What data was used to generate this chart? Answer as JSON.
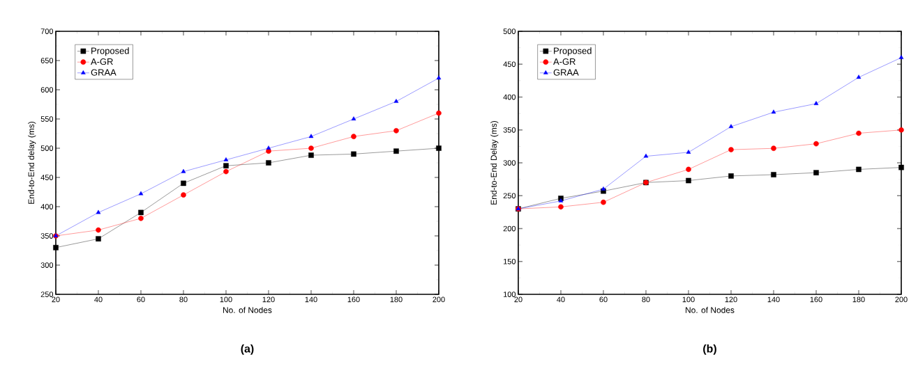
{
  "chart_data": [
    {
      "type": "line",
      "xlabel": "No. of Nodes",
      "ylabel": "End-to-End delay (ms)",
      "annotations": [
        "(a)"
      ],
      "x": [
        20,
        40,
        60,
        80,
        100,
        120,
        140,
        160,
        180,
        200
      ],
      "xlim": [
        20,
        200
      ],
      "xticks": [
        20,
        40,
        60,
        80,
        100,
        120,
        140,
        160,
        180,
        200
      ],
      "ylim": [
        250,
        700
      ],
      "yticks": [
        250,
        300,
        350,
        400,
        450,
        500,
        550,
        600,
        650,
        700
      ],
      "legend": "top left",
      "grid": false,
      "series": [
        {
          "name": "Proposed",
          "color": "#000000",
          "marker": "square",
          "values": [
            330,
            345,
            390,
            440,
            470,
            475,
            488,
            490,
            495,
            500
          ]
        },
        {
          "name": "A-GR",
          "color": "#ff0000",
          "marker": "circle",
          "values": [
            350,
            360,
            380,
            420,
            460,
            495,
            500,
            520,
            530,
            560
          ]
        },
        {
          "name": "GRAA",
          "color": "#0000ff",
          "marker": "triangle",
          "values": [
            350,
            390,
            422,
            460,
            480,
            500,
            520,
            550,
            580,
            620
          ]
        }
      ]
    },
    {
      "type": "line",
      "xlabel": "No. of Nodes",
      "ylabel": "End-to-End Delay (ms)",
      "annotations": [
        "(b)"
      ],
      "x": [
        20,
        40,
        60,
        80,
        100,
        120,
        140,
        160,
        180,
        200
      ],
      "xlim": [
        20,
        200
      ],
      "xticks": [
        20,
        40,
        60,
        80,
        100,
        120,
        140,
        160,
        180,
        200
      ],
      "ylim": [
        100,
        500
      ],
      "yticks": [
        100,
        150,
        200,
        250,
        300,
        350,
        400,
        450,
        500
      ],
      "legend": "top left",
      "grid": false,
      "series": [
        {
          "name": "Proposed",
          "color": "#000000",
          "marker": "square",
          "values": [
            230,
            246,
            257,
            270,
            273,
            280,
            282,
            285,
            290,
            293
          ]
        },
        {
          "name": "A-GR",
          "color": "#ff0000",
          "marker": "circle",
          "values": [
            230,
            233,
            240,
            270,
            290,
            320,
            322,
            329,
            345,
            350
          ]
        },
        {
          "name": "GRAA",
          "color": "#0000ff",
          "marker": "triangle",
          "values": [
            230,
            242,
            260,
            310,
            316,
            355,
            377,
            390,
            430,
            460
          ]
        }
      ]
    }
  ]
}
